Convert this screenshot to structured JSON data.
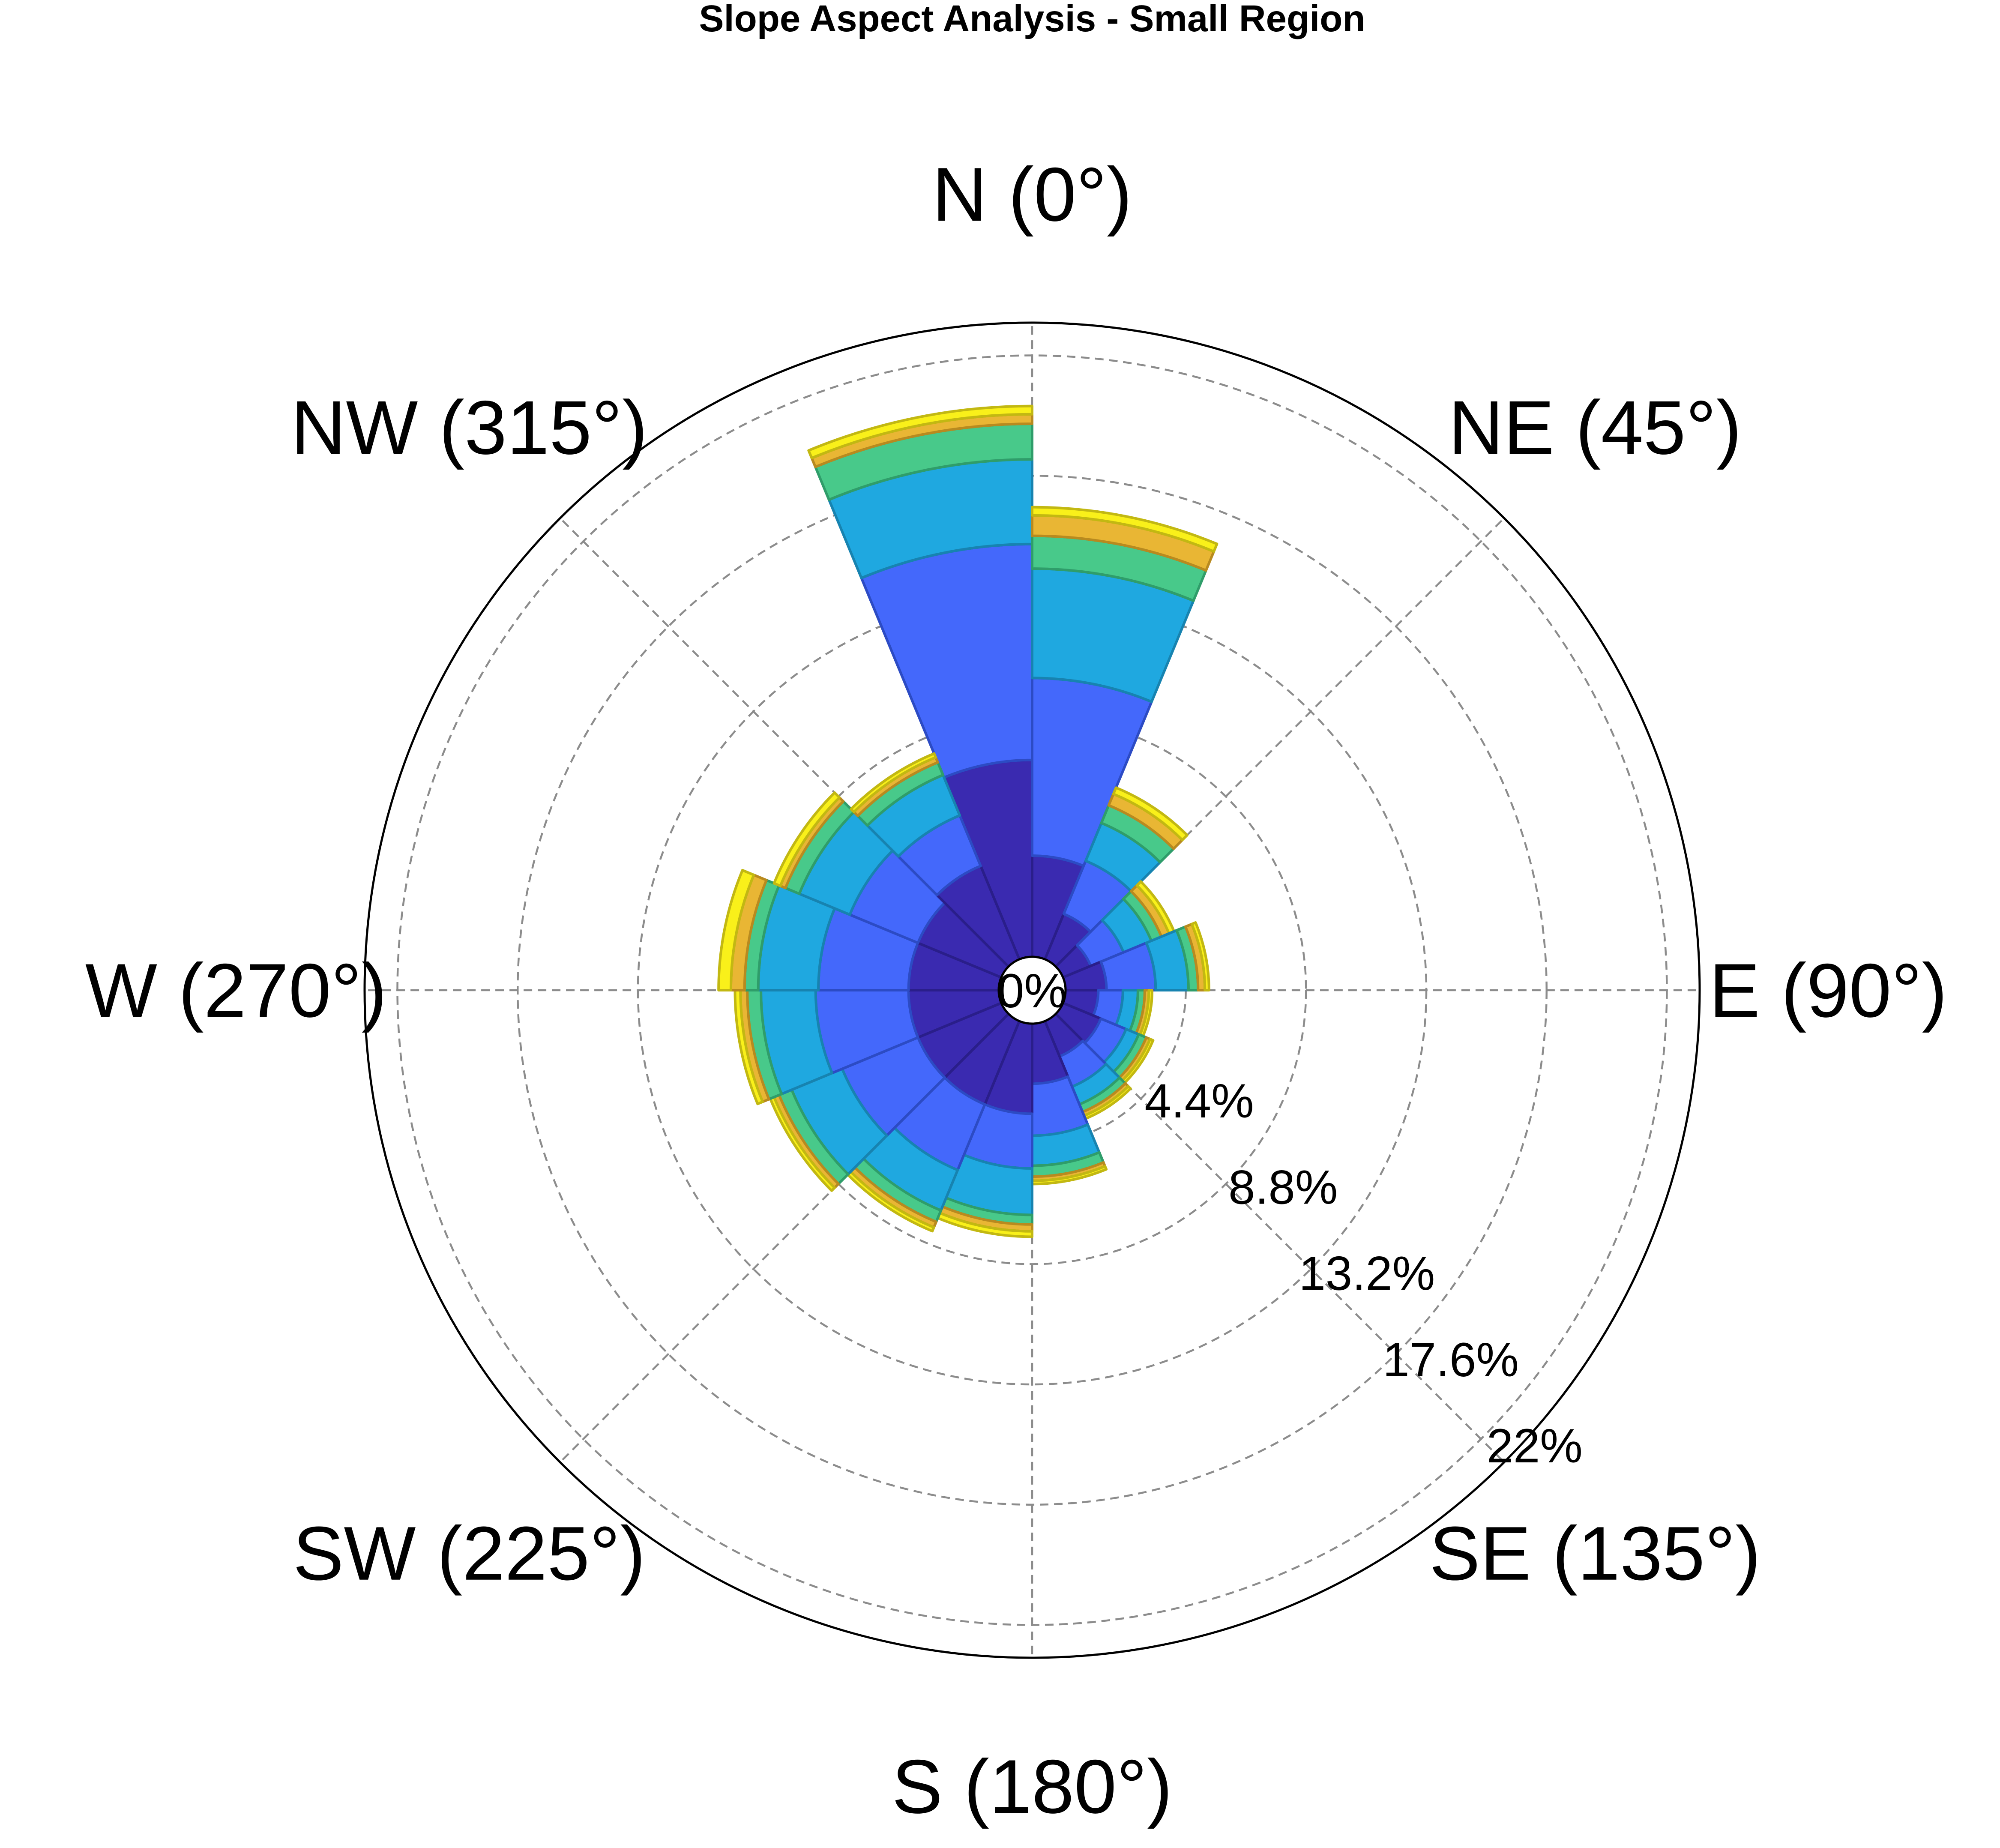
{
  "chart_data": {
    "type": "polar-stacked-bar",
    "title": "Slope Aspect Analysis - Small Region",
    "directions": [
      {
        "key": "N",
        "label": "N (0°)",
        "angle": 0
      },
      {
        "key": "NE",
        "label": "NE (45°)",
        "angle": 45
      },
      {
        "key": "E",
        "label": "E (90°)",
        "angle": 90
      },
      {
        "key": "SE",
        "label": "SE (135°)",
        "angle": 135
      },
      {
        "key": "S",
        "label": "S (180°)",
        "angle": 180
      },
      {
        "key": "SW",
        "label": "SW (225°)",
        "angle": 225
      },
      {
        "key": "W",
        "label": "W (270°)",
        "angle": 270
      },
      {
        "key": "NW",
        "label": "NW (315°)",
        "angle": 315
      }
    ],
    "radial_ticks": [
      {
        "value": 0,
        "label": "0%"
      },
      {
        "value": 4.4,
        "label": "4.4%"
      },
      {
        "value": 8.8,
        "label": "8.8%"
      },
      {
        "value": 13.2,
        "label": "13.2%"
      },
      {
        "value": 17.6,
        "label": "17.6%"
      },
      {
        "value": 22,
        "label": "22%"
      }
    ],
    "r_max": 23.2,
    "hole_fraction": 0.05,
    "sector_width_deg": 22.5,
    "bin_colors": [
      "#3a2ab0",
      "#4468fb",
      "#1fa8e0",
      "#48c98a",
      "#e9b634",
      "#f9f01a"
    ],
    "bin_edge_colors": [
      "#2a1e8a",
      "#2c4bc4",
      "#1783b0",
      "#2f9d6a",
      "#b88a1f",
      "#c2b812"
    ],
    "sectors": [
      {
        "center": -11.25,
        "values": [
          7.2,
          7.9,
          3.1,
          1.3,
          0.35,
          0.3
        ]
      },
      {
        "center": 11.25,
        "values": [
          3.7,
          6.5,
          4.0,
          1.2,
          0.75,
          0.3
        ]
      },
      {
        "center": 33.75,
        "values": [
          1.8,
          2.1,
          1.5,
          0.7,
          0.45,
          0.25
        ]
      },
      {
        "center": 56.25,
        "values": [
          1.1,
          1.3,
          1.1,
          0.4,
          0.3,
          0.2
        ]
      },
      {
        "center": 78.75,
        "values": [
          1.5,
          1.8,
          1.2,
          0.35,
          0.25,
          0.15
        ]
      },
      {
        "center": 101.25,
        "values": [
          1.2,
          0.9,
          0.55,
          0.25,
          0.15,
          0.12
        ]
      },
      {
        "center": 123.75,
        "values": [
          1.5,
          1.0,
          0.5,
          0.3,
          0.15,
          0.12
        ]
      },
      {
        "center": 146.25,
        "values": [
          1.4,
          1.2,
          0.7,
          0.3,
          0.15,
          0.12
        ]
      },
      {
        "center": 168.75,
        "values": [
          2.2,
          1.9,
          1.1,
          0.4,
          0.15,
          0.12
        ]
      },
      {
        "center": 191.25,
        "values": [
          3.3,
          2.0,
          1.7,
          0.35,
          0.25,
          0.2
        ]
      },
      {
        "center": 213.75,
        "values": [
          3.3,
          2.6,
          1.6,
          0.45,
          0.22,
          0.15
        ]
      },
      {
        "center": 236.25,
        "values": [
          3.3,
          3.0,
          2.0,
          0.5,
          0.2,
          0.15
        ]
      },
      {
        "center": 258.75,
        "values": [
          3.3,
          3.4,
          2.0,
          0.5,
          0.25,
          0.2
        ]
      },
      {
        "center": 281.25,
        "values": [
          3.3,
          3.3,
          2.2,
          0.5,
          0.5,
          0.45
        ]
      },
      {
        "center": 303.75,
        "values": [
          3.3,
          2.7,
          2.0,
          0.55,
          0.2,
          0.25
        ]
      },
      {
        "center": 326.25,
        "values": [
          3.7,
          2.0,
          1.6,
          0.5,
          0.2,
          0.15
        ]
      }
    ]
  }
}
